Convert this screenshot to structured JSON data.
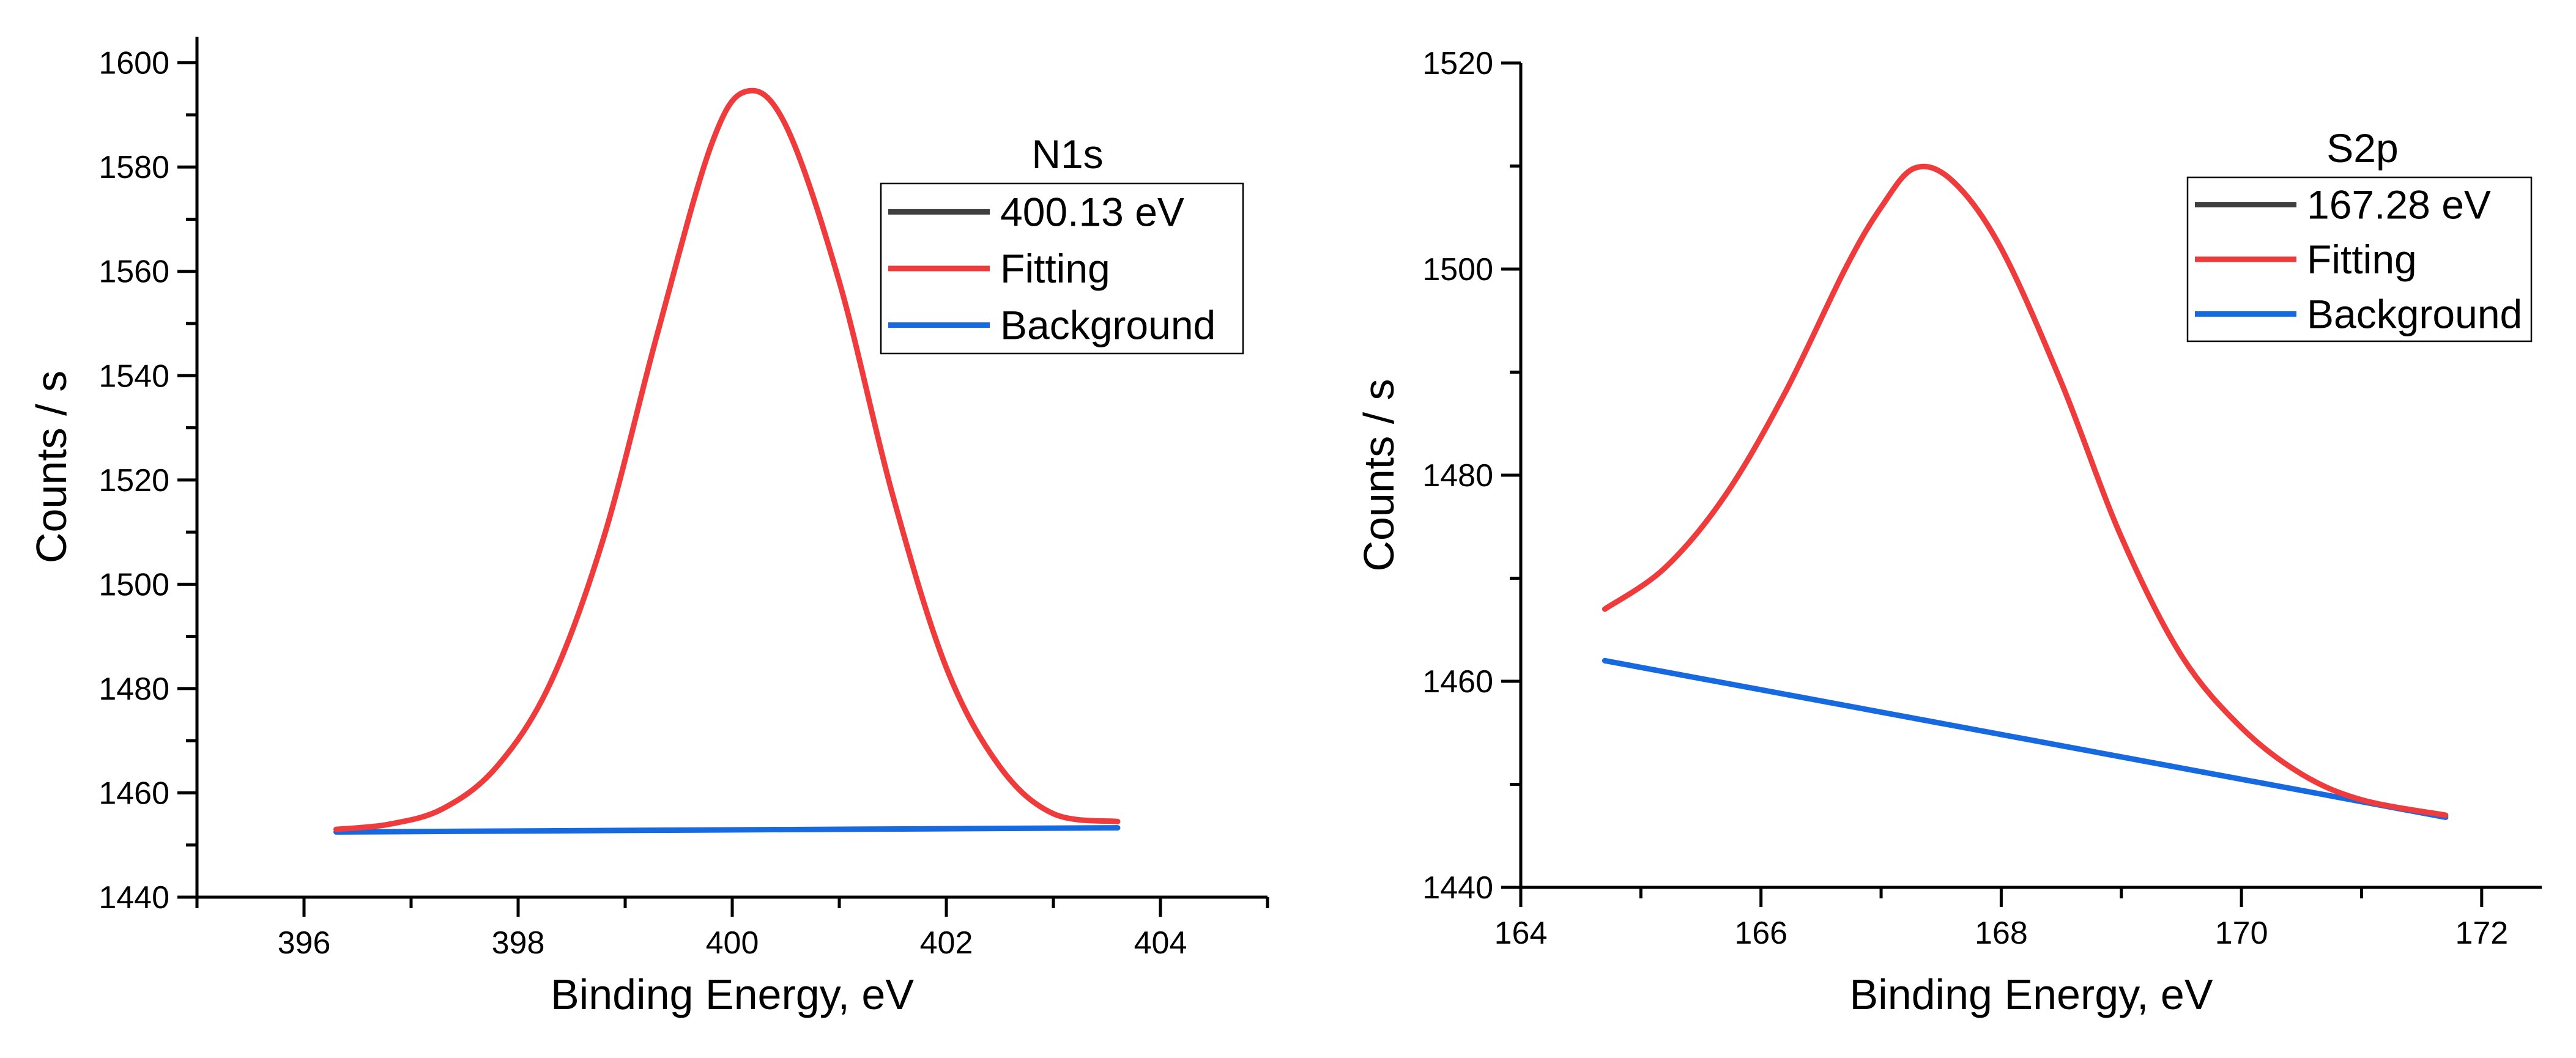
{
  "colors": {
    "peak": "#3f3f3f",
    "fitting": "#ef3b3b",
    "background": "#1769e0"
  },
  "chart_data": [
    {
      "type": "line",
      "xlabel": "Binding Energy, eV",
      "ylabel": "Counts / s",
      "xlim": [
        395,
        405
      ],
      "ylim": [
        1440,
        1605
      ],
      "xticks": [
        396,
        398,
        400,
        402,
        404
      ],
      "yticks": [
        1440,
        1460,
        1480,
        1500,
        1520,
        1540,
        1560,
        1580,
        1600
      ],
      "legend": {
        "title": "N1s",
        "placement": "top-right",
        "entries": [
          "400.13 eV",
          "Fitting",
          "Background"
        ]
      },
      "series": [
        {
          "name": "Fitting",
          "color": "#ef3b3b",
          "x": [
            396.3,
            396.8,
            397.3,
            397.8,
            398.3,
            398.8,
            399.3,
            399.8,
            400.13,
            400.5,
            401.0,
            401.5,
            402.0,
            402.5,
            403.0,
            403.6
          ],
          "y": [
            1453,
            1454,
            1457,
            1465,
            1481,
            1509,
            1548,
            1584,
            1594.5,
            1588,
            1558,
            1517,
            1484,
            1465,
            1456,
            1454.5
          ]
        },
        {
          "name": "Background",
          "color": "#1769e0",
          "x": [
            396.3,
            403.6
          ],
          "y": [
            1452.5,
            1453.3
          ]
        }
      ]
    },
    {
      "type": "line",
      "xlabel": "Binding Energy, eV",
      "ylabel": "Counts / s",
      "xlim": [
        164,
        172.5
      ],
      "ylim": [
        1440,
        1520
      ],
      "xticks": [
        164,
        166,
        168,
        170,
        172
      ],
      "yticks": [
        1440,
        1460,
        1480,
        1500,
        1520
      ],
      "legend": {
        "title": "S2p",
        "placement": "top-right",
        "entries": [
          "167.28 eV",
          "Fitting",
          "Background"
        ]
      },
      "series": [
        {
          "name": "Fitting",
          "color": "#ef3b3b",
          "x": [
            164.7,
            165.2,
            165.7,
            166.2,
            166.7,
            167.0,
            167.28,
            167.6,
            168.0,
            168.5,
            169.0,
            169.5,
            170.0,
            170.5,
            171.0,
            171.7
          ],
          "y": [
            1467,
            1471,
            1478,
            1488,
            1500,
            1506,
            1509.8,
            1508.5,
            1502,
            1489,
            1474,
            1462.5,
            1455.5,
            1451,
            1448.5,
            1447
          ]
        },
        {
          "name": "Background",
          "color": "#1769e0",
          "x": [
            164.7,
            171.7
          ],
          "y": [
            1462,
            1446.8
          ]
        }
      ]
    }
  ]
}
